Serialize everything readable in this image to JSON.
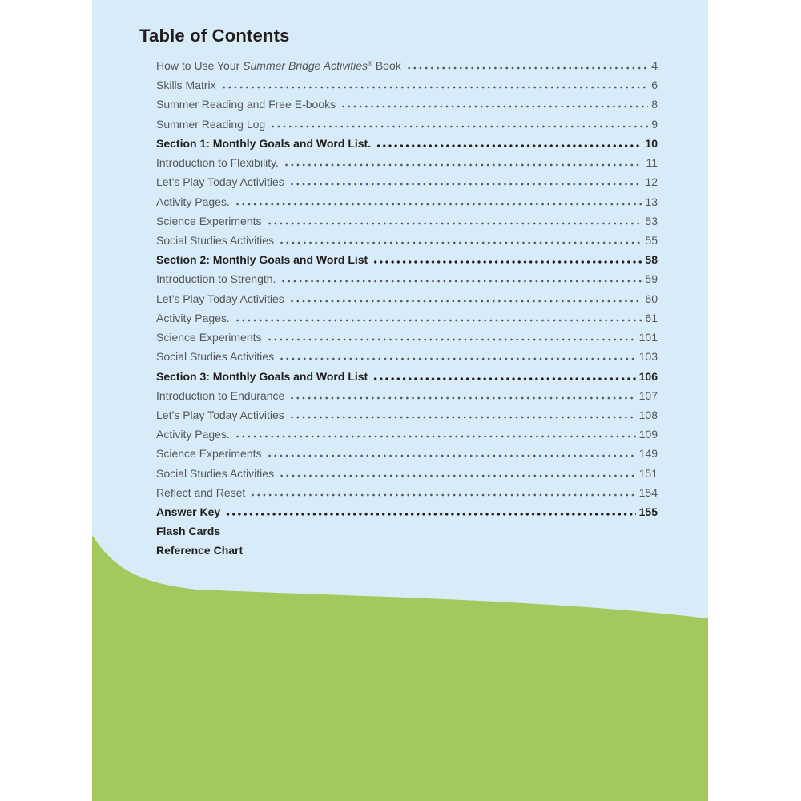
{
  "colors": {
    "margin_white": "#ffffff",
    "page_background": "#d7ecf8",
    "wave_green": "#a3c85e",
    "entry_text": "#55565a",
    "heading_text": "#221e1f"
  },
  "page": {
    "title": "Table of Contents"
  },
  "toc": {
    "entries": [
      {
        "parts": [
          {
            "text": "How to Use Your "
          },
          {
            "text": "Summer Bridge Activities",
            "style": "italic"
          },
          {
            "text": "®",
            "style": "sup"
          },
          {
            "text": " Book"
          }
        ],
        "page": "4",
        "bold": false
      },
      {
        "parts": [
          {
            "text": "Skills Matrix"
          }
        ],
        "page": "6",
        "bold": false
      },
      {
        "parts": [
          {
            "text": "Summer Reading and Free E-books"
          }
        ],
        "page": "8",
        "bold": false
      },
      {
        "parts": [
          {
            "text": "Summer Reading Log"
          }
        ],
        "page": "9",
        "bold": false
      },
      {
        "parts": [
          {
            "text": "Section 1: Monthly Goals and Word List."
          }
        ],
        "page": "10",
        "bold": true
      },
      {
        "parts": [
          {
            "text": "Introduction to Flexibility."
          }
        ],
        "page": "11",
        "bold": false
      },
      {
        "parts": [
          {
            "text": "Let’s Play Today Activities"
          }
        ],
        "page": "12",
        "bold": false
      },
      {
        "parts": [
          {
            "text": "Activity Pages."
          }
        ],
        "page": "13",
        "bold": false
      },
      {
        "parts": [
          {
            "text": "Science Experiments"
          }
        ],
        "page": "53",
        "bold": false
      },
      {
        "parts": [
          {
            "text": "Social Studies Activities"
          }
        ],
        "page": "55",
        "bold": false
      },
      {
        "parts": [
          {
            "text": "Section 2: Monthly Goals and Word List"
          }
        ],
        "page": "58",
        "bold": true
      },
      {
        "parts": [
          {
            "text": "Introduction to Strength."
          }
        ],
        "page": "59",
        "bold": false
      },
      {
        "parts": [
          {
            "text": "Let’s Play Today Activities"
          }
        ],
        "page": "60",
        "bold": false
      },
      {
        "parts": [
          {
            "text": "Activity Pages."
          }
        ],
        "page": "61",
        "bold": false
      },
      {
        "parts": [
          {
            "text": "Science Experiments"
          }
        ],
        "page": "101",
        "bold": false
      },
      {
        "parts": [
          {
            "text": "Social Studies Activities"
          }
        ],
        "page": "103",
        "bold": false
      },
      {
        "parts": [
          {
            "text": "Section 3: Monthly Goals and Word List"
          }
        ],
        "page": "106",
        "bold": true
      },
      {
        "parts": [
          {
            "text": "Introduction to Endurance"
          }
        ],
        "page": "107",
        "bold": false
      },
      {
        "parts": [
          {
            "text": "Let’s Play Today Activities"
          }
        ],
        "page": "108",
        "bold": false
      },
      {
        "parts": [
          {
            "text": "Activity Pages."
          }
        ],
        "page": "109",
        "bold": false
      },
      {
        "parts": [
          {
            "text": "Science Experiments"
          }
        ],
        "page": "149",
        "bold": false
      },
      {
        "parts": [
          {
            "text": "Social Studies Activities"
          }
        ],
        "page": "151",
        "bold": false
      },
      {
        "parts": [
          {
            "text": "Reflect and Reset"
          }
        ],
        "page": "154",
        "bold": false
      },
      {
        "parts": [
          {
            "text": "Answer Key"
          }
        ],
        "page": "155",
        "bold": true
      },
      {
        "parts": [
          {
            "text": "Flash Cards"
          }
        ],
        "page": "",
        "bold": true
      },
      {
        "parts": [
          {
            "text": "Reference Chart"
          }
        ],
        "page": "",
        "bold": true
      }
    ]
  }
}
